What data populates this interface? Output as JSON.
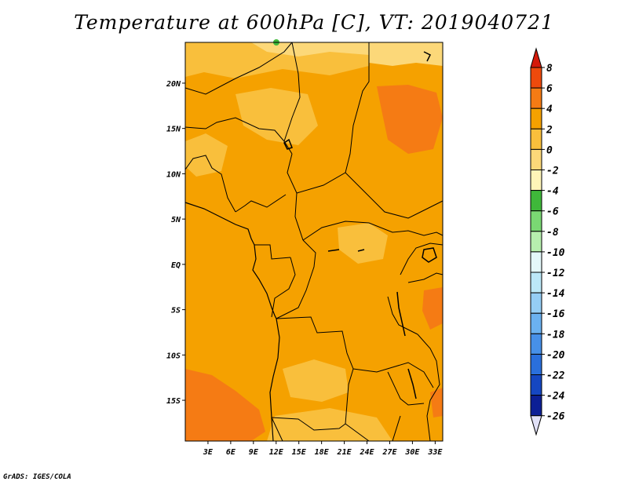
{
  "title": "Temperature at 600hPa [C], VT: 2019040721",
  "credit": "GrADS: IGES/COLA",
  "map": {
    "region": "Central Africa",
    "lon_range": [
      0,
      34
    ],
    "lat_range": [
      -19.5,
      24.5
    ],
    "lon_ticks": [
      "3E",
      "6E",
      "9E",
      "12E",
      "15E",
      "18E",
      "21E",
      "24E",
      "27E",
      "30E",
      "33E"
    ],
    "lat_ticks": [
      "20N",
      "15N",
      "10N",
      "5N",
      "EQ",
      "5S",
      "10S",
      "15S"
    ],
    "dominant_field_color": "#f5a100",
    "features": [
      "country borders",
      "coastline",
      "lakes"
    ]
  },
  "colorbar": {
    "levels": [
      "8",
      "6",
      "4",
      "2",
      "0",
      "-2",
      "-4",
      "-6",
      "-8",
      "-10",
      "-12",
      "-14",
      "-16",
      "-18",
      "-20",
      "-22",
      "-24",
      "-26"
    ],
    "colors": [
      "#d41a0a",
      "#ee4a0c",
      "#f57b14",
      "#f5a100",
      "#f9bf3c",
      "#fcd879",
      "#fef5b8",
      "#3fb83a",
      "#7ad873",
      "#b7efae",
      "#e4f8fa",
      "#bce8f8",
      "#95cdf5",
      "#6bb1f0",
      "#4790e8",
      "#2a6fdc",
      "#1547c2",
      "#0c1f95",
      "#e1e1f7"
    ]
  }
}
